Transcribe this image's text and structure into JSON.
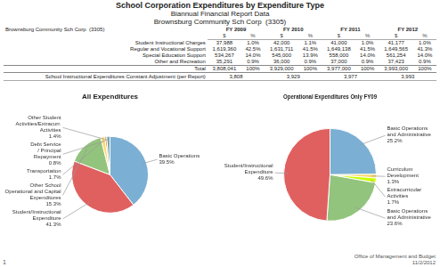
{
  "chart_data": [
    {
      "type": "table",
      "title": "School Corporation Expenditures by Expenditure Type",
      "subtitle": [
        "Biannual Financial Report Data",
        "Brownsburg Community Sch Corp  (3305)"
      ],
      "annotations": [
        "Brownsburg Community Sch Corp  (3305)",
        "Office of Management and Budget\n11/2/2012",
        "1"
      ],
      "columns": [
        "FY 2009",
        "FY 2010",
        "FY 2011",
        "FY 2012"
      ],
      "column_units": [
        "$",
        "%"
      ],
      "rows": [
        {
          "name": "Student Instructional Charges",
          "values": [
            "37,988",
            "1.0%",
            "42,000",
            "1.1%",
            "41,000",
            "1.0%",
            "41,177",
            "1.0%"
          ]
        },
        {
          "name": "Regular and Vocational Support",
          "values": [
            "1,619,360",
            "42.5%",
            "1,631,711",
            "41.5%",
            "1,649,138",
            "41.5%",
            "1,649,565",
            "41.3%"
          ]
        },
        {
          "name": "Special Education Support",
          "values": [
            "534,267",
            "14.0%",
            "545,000",
            "13.9%",
            "558,000",
            "14.0%",
            "561,254",
            "14.0%"
          ]
        },
        {
          "name": "Other and Recreation",
          "values": [
            "35,291",
            "0.9%",
            "36,000",
            "0.9%",
            "37,000",
            "0.9%",
            "37,423",
            "0.9%"
          ]
        },
        {
          "name": "Total",
          "values": [
            "3,808,041",
            "100%",
            "3,929,000",
            "100%",
            "3,977,000",
            "100%",
            "3,993,000",
            "100%"
          ]
        }
      ],
      "subtotal": {
        "name": "School Instructional Expenditures Constant Adjustment (per Report)",
        "values": [
          "3,808",
          "3,929",
          "3,977",
          "3,993"
        ]
      }
    },
    {
      "type": "pie",
      "title": "All Expenditures",
      "categories": [
        "Basic Operations",
        "Student/Instructional\nExpenditure",
        "Other School\nOperational and Capital\nExpenditures",
        "Transportation",
        "Debt Service\n/ Principal\nRepayment",
        "Other Student\nActivities/Extracurr.\nActivities"
      ],
      "values": [
        39.5,
        41.3,
        15.3,
        1.7,
        0.8,
        1.4
      ],
      "value_labels": [
        "39.5%",
        "41.3%",
        "15.3%",
        "1.7%",
        "0.8%",
        "1.4%"
      ],
      "colors": [
        "#7bafd4",
        "#e06060",
        "#93c47d",
        "#ffd966",
        "#e69138",
        "#76a5af"
      ],
      "data_labels": true
    },
    {
      "type": "pie",
      "title": "Operational Expenditures Only FY09",
      "categories": [
        "Basic Operations\nand Administrative",
        "Curriculum\nDevelopment",
        "Extracurricular\nActivities",
        "Basic Operations\nand Administrative",
        "Student/Instructional\nExpenditure"
      ],
      "values": [
        25.2,
        1.3,
        1.7,
        23.6,
        49.6
      ],
      "value_labels": [
        "25.2%",
        "1.3%",
        "1.7%",
        "23.6%",
        "49.6%"
      ],
      "colors": [
        "#7bafd4",
        "#ffd966",
        "#ccff00",
        "#93c47d",
        "#e06060"
      ],
      "data_labels": true
    }
  ]
}
